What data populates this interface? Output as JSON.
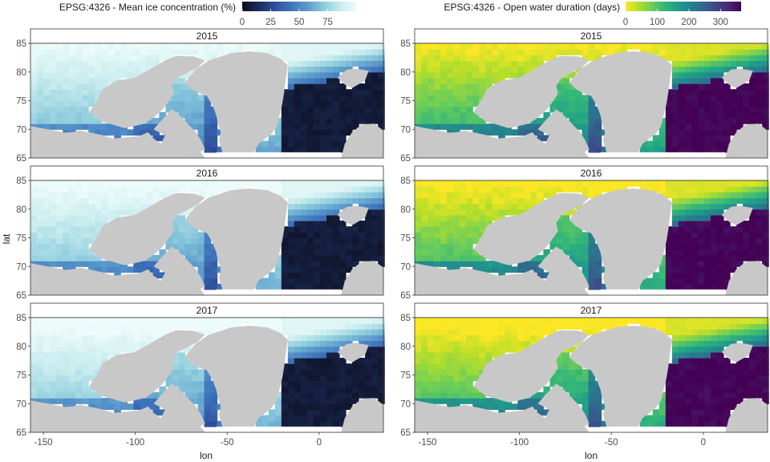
{
  "chart_data": [
    {
      "type": "heatmap",
      "panel": "left",
      "legend_title": "EPSG:4326 - Mean ice concentration (%)",
      "legend_ticks": [
        0,
        25,
        50,
        75
      ],
      "legend_range": [
        0,
        100
      ],
      "legend_placement": "top",
      "palette": [
        "#0b0d1c",
        "#1c2c5a",
        "#2f4f9a",
        "#3f74bd",
        "#5b9ccc",
        "#8ccbdc",
        "#c6ebee",
        "#eefbfb"
      ],
      "land_color": "#c8c8c8",
      "facets": [
        "2015",
        "2016",
        "2017"
      ],
      "xlabel": "lon",
      "ylabel": "lat",
      "xlim": [
        -157,
        35
      ],
      "ylim": [
        65,
        85
      ],
      "x_ticks": [
        -150,
        -100,
        -50,
        0
      ],
      "y_ticks": [
        65,
        70,
        75,
        80,
        85
      ]
    },
    {
      "type": "heatmap",
      "panel": "right",
      "legend_title": "EPSG:4326 - Open water duration (days)",
      "legend_ticks": [
        0,
        100,
        200,
        300
      ],
      "legend_range": [
        0,
        365
      ],
      "legend_placement": "top",
      "palette": [
        "#fde725",
        "#b5de2b",
        "#6ece58",
        "#35b779",
        "#1f9e89",
        "#26828e",
        "#31688e",
        "#3e4989",
        "#482878",
        "#440154"
      ],
      "land_color": "#c8c8c8",
      "facets": [
        "2015",
        "2016",
        "2017"
      ],
      "xlabel": "lon",
      "ylabel": "",
      "xlim": [
        -157,
        35
      ],
      "ylim": [
        65,
        85
      ],
      "x_ticks": [
        -150,
        -100,
        -50,
        0
      ],
      "y_ticks": [
        65,
        70,
        75,
        80,
        85
      ]
    }
  ]
}
